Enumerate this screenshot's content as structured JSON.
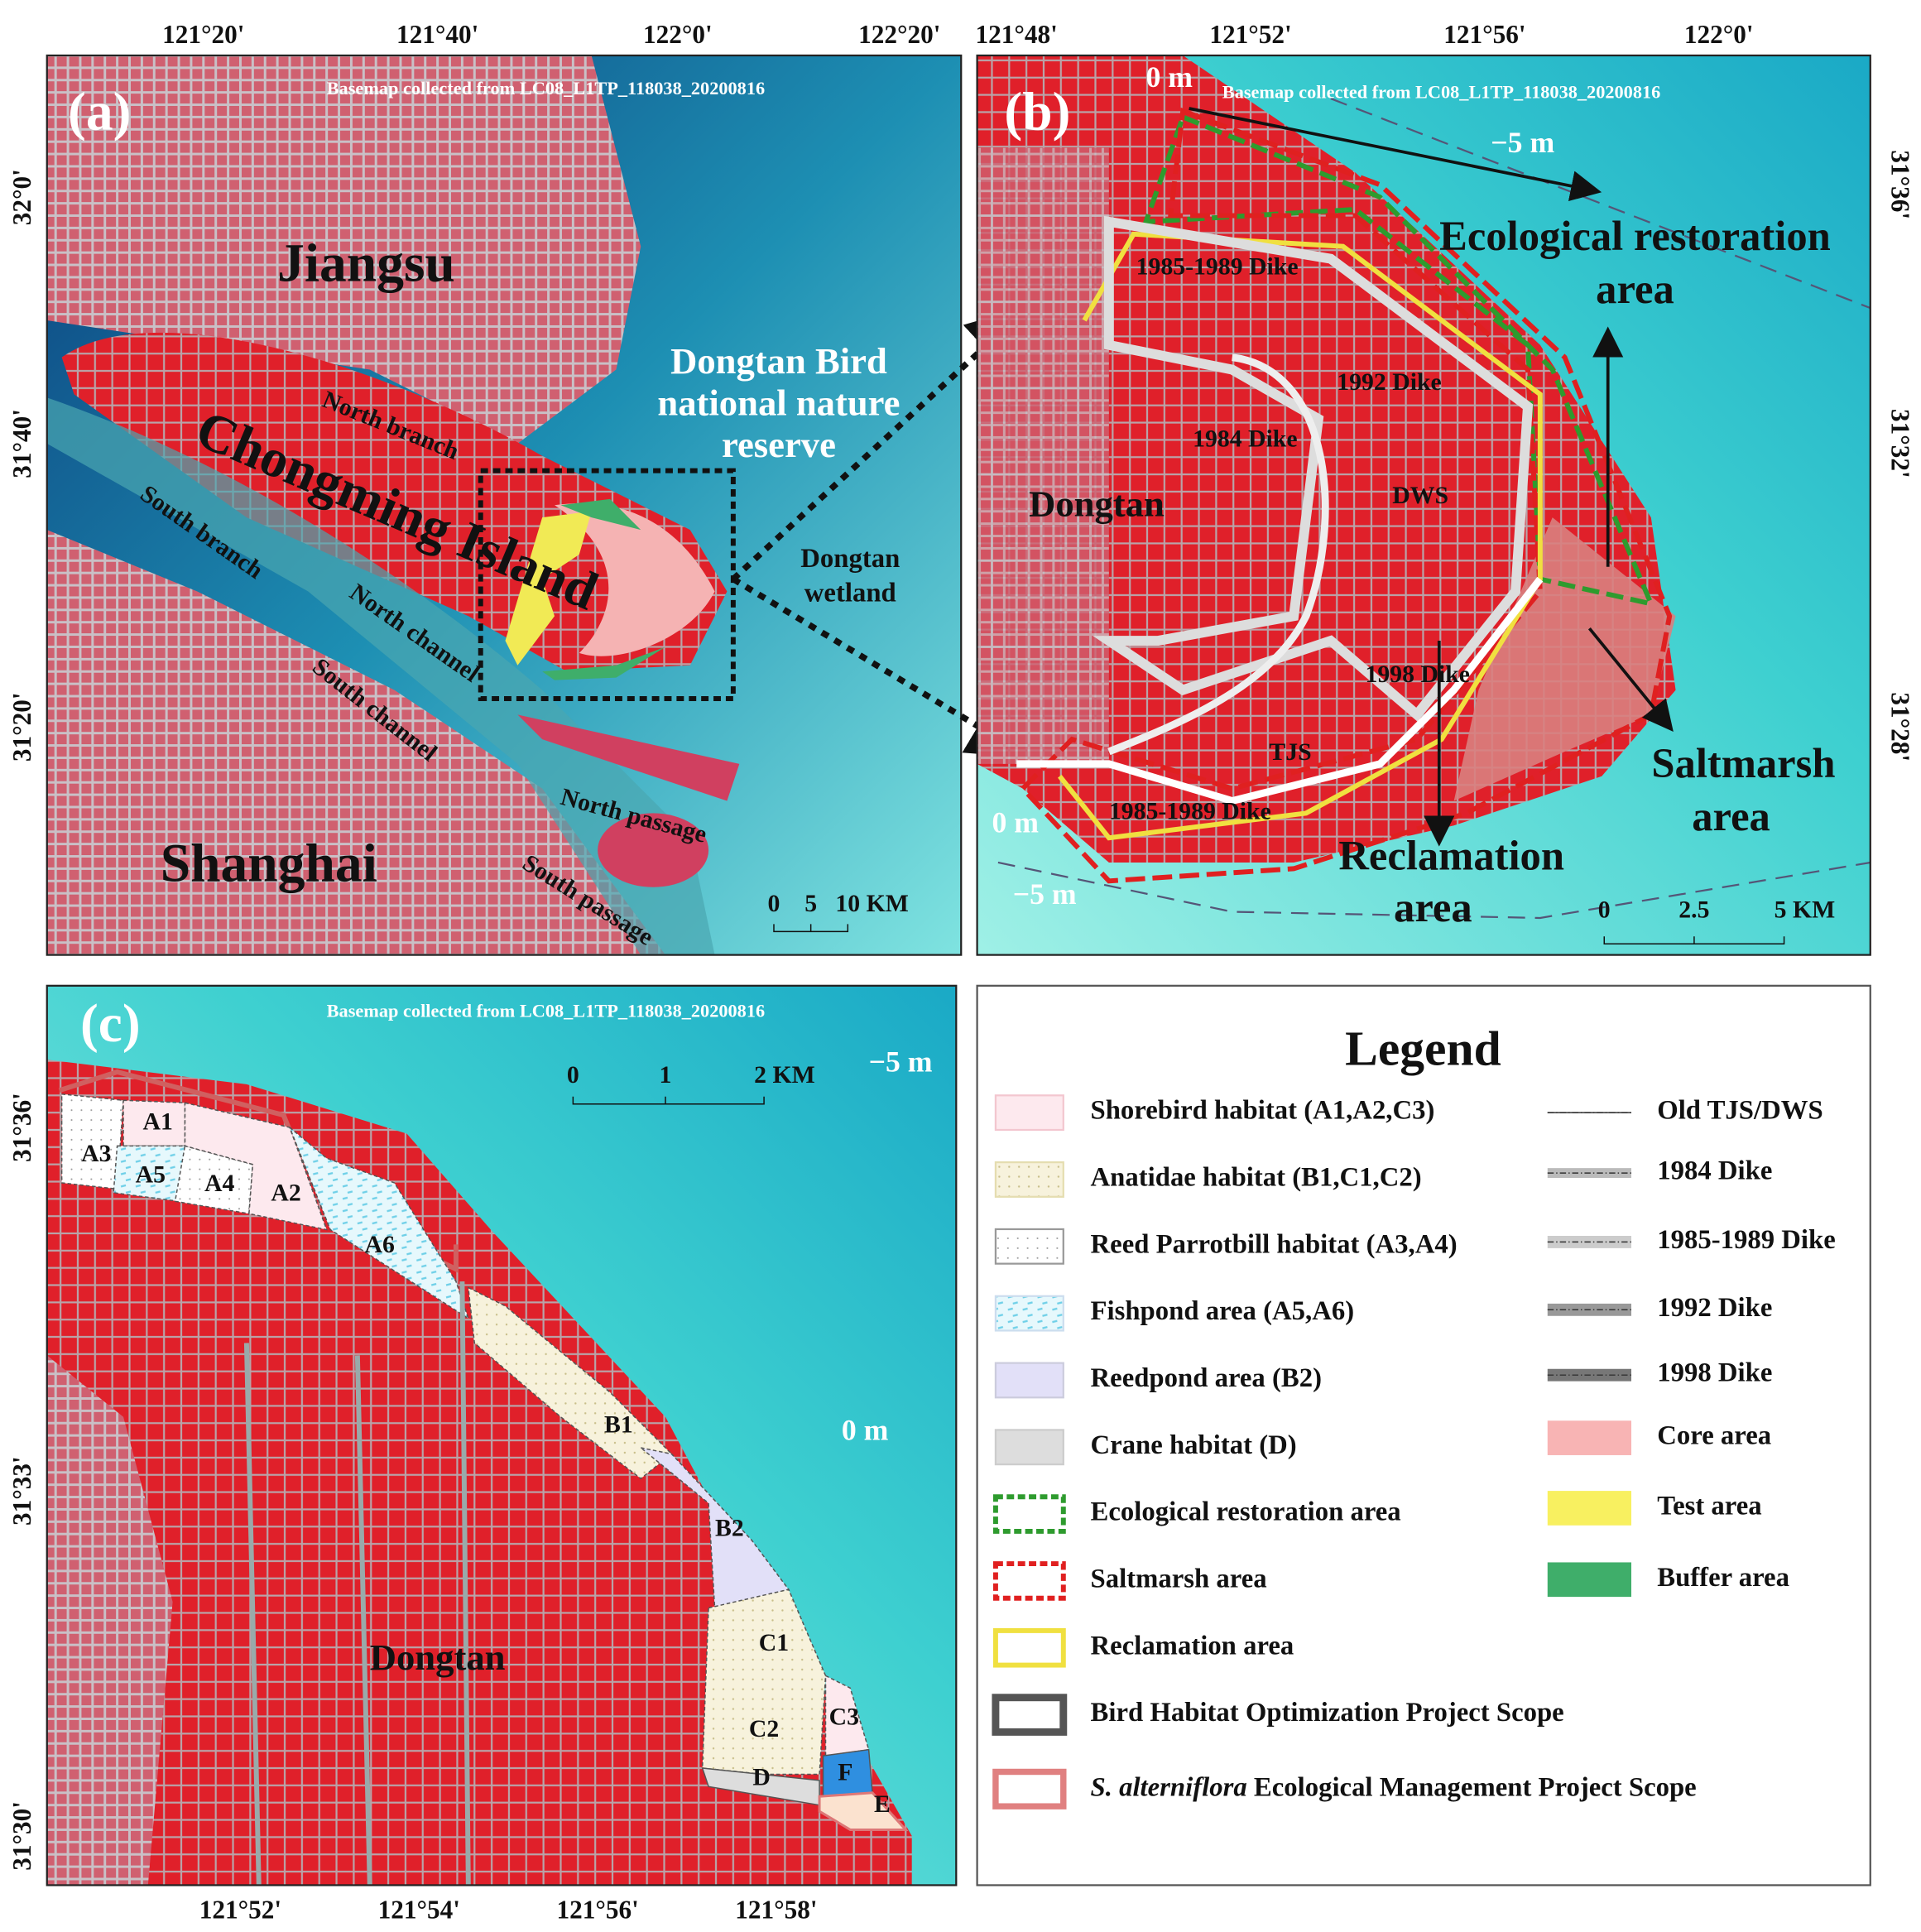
{
  "panel_a": {
    "label": "(a)",
    "basemap": "Basemap collected from LC08_L1TP_118038_20200816",
    "top_ticks": [
      "121°20'",
      "121°40'",
      "122°0'",
      "122°20'"
    ],
    "left_ticks": [
      "32°0'",
      "31°40'",
      "31°20'"
    ],
    "place_labels": [
      "Jiangsu",
      "Chongming Island",
      "Shanghai",
      "North  branch",
      "South  branch",
      "North channel",
      "South channel",
      "North passage",
      "South passage",
      "Dongtan Bird",
      "national nature",
      "reserve",
      "Dongtan",
      "wetland"
    ],
    "scale_bar": [
      "0",
      "5",
      "10 KM"
    ]
  },
  "panel_b": {
    "label": "(b)",
    "basemap": "Basemap collected from LC08_L1TP_118038_20200816",
    "top_ticks": [
      "121°48'",
      "121°52'",
      "121°56'",
      "122°0'"
    ],
    "right_ticks": [
      "31°36'",
      "31°32'",
      "31°28'"
    ],
    "place_labels": [
      "0 m",
      "−5 m",
      "0 m",
      "−5 m",
      "Ecological restoration",
      "area",
      "1985-1989 Dike",
      "1992 Dike",
      "1984 Dike",
      "Dongtan",
      "DWS",
      "1998  Dike",
      "TJS",
      "1985-1989  Dike",
      "Saltmarsh",
      "area",
      "Reclamation",
      "area"
    ],
    "scale_bar": [
      "0",
      "2.5",
      "5 KM"
    ]
  },
  "panel_c": {
    "label": "(c)",
    "basemap": "Basemap collected from LC08_L1TP_118038_20200816",
    "bottom_ticks": [
      "121°52'",
      "121°54'",
      "121°56'",
      "121°58'"
    ],
    "left_ticks": [
      "31°36'",
      "31°33'",
      "31°30'"
    ],
    "place_labels": [
      "−5 m",
      "0 m",
      "Dongtan"
    ],
    "zones": [
      "A1",
      "A3",
      "A5",
      "A4",
      "A2",
      "A6",
      "B1",
      "B2",
      "C1",
      "C2",
      "C3",
      "D",
      "F",
      "E"
    ],
    "scale_bar": [
      "0",
      "1",
      "2 KM"
    ]
  },
  "legend": {
    "title": "Legend",
    "left_items": [
      "Shorebird habitat (A1,A2,C3)",
      "Anatidae habitat (B1,C1,C2)",
      "Reed Parrotbill habitat (A3,A4)",
      "Fishpond area (A5,A6)",
      "Reedpond area (B2)",
      "Crane habitat (D)",
      "Ecological restoration area",
      "Saltmarsh area",
      " Reclamation area",
      "Bird Habitat Optimization Project Scope"
    ],
    "last_item": {
      "italic": "S. alterniflora",
      "text": " Ecological Management Project Scope"
    },
    "right_items": [
      "Old TJS/DWS",
      "1984 Dike",
      "1985-1989 Dike",
      "1992 Dike",
      "1998 Dike",
      "Core area",
      "Test area",
      "Buffer area"
    ]
  }
}
